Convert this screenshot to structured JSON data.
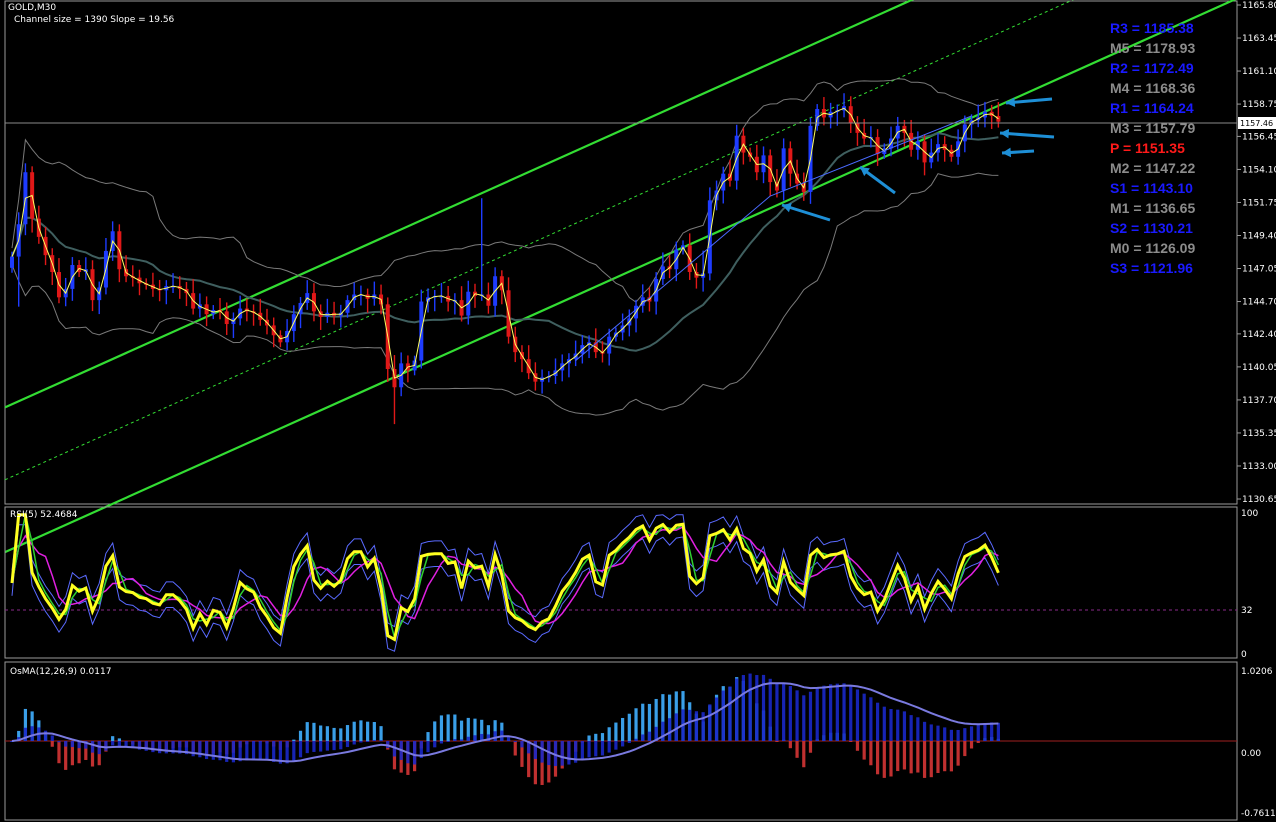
{
  "header": {
    "symbol": "GOLD,M30",
    "channel_info": "Channel size = 1390 Slope = 19.56"
  },
  "price_axis": {
    "ticks": [
      "1165.80",
      "1163.45",
      "1161.10",
      "1158.75",
      "1156.45",
      "1154.10",
      "1151.75",
      "1149.40",
      "1147.05",
      "1144.70",
      "1142.40",
      "1140.05",
      "1137.70",
      "1135.35",
      "1133.00",
      "1130.65"
    ],
    "current": "1157.46"
  },
  "pivots": [
    {
      "label": "R3 = 1185.38",
      "color": "#1a1aff"
    },
    {
      "label": "M5 = 1178.93",
      "color": "#8c8c8c"
    },
    {
      "label": "R2 = 1172.49",
      "color": "#1a1aff"
    },
    {
      "label": "M4 = 1168.36",
      "color": "#8c8c8c"
    },
    {
      "label": "R1 = 1164.24",
      "color": "#1a1aff"
    },
    {
      "label": "M3 = 1157.79",
      "color": "#8c8c8c"
    },
    {
      "label": "P   = 1151.35",
      "color": "#ff1a1a"
    },
    {
      "label": "M2 = 1147.22",
      "color": "#8c8c8c"
    },
    {
      "label": "S1 = 1143.10",
      "color": "#1a1aff"
    },
    {
      "label": "M1 = 1136.65",
      "color": "#8c8c8c"
    },
    {
      "label": "S2 = 1130.21",
      "color": "#1a1aff"
    },
    {
      "label": "M0 = 1126.09",
      "color": "#8c8c8c"
    },
    {
      "label": "S3 = 1121.96",
      "color": "#1a1aff"
    }
  ],
  "rsi_panel": {
    "title": "RSI(5) 52.4684",
    "ticks": [
      "100",
      "32",
      "0"
    ]
  },
  "osma_panel": {
    "title": "OsMA(12,26,9) 0.0117",
    "ticks": [
      "1.0206",
      "0.00",
      "-0.7611"
    ]
  },
  "colors": {
    "bull": "#1e3cff",
    "bear": "#e01818",
    "channel": "#33dd33",
    "bands": "#7a7a7a",
    "ma": "#3f5f5f",
    "rsi_main": "#ffff20",
    "rsi_ma1": "#2fd02f",
    "rsi_ma2": "#e020e0",
    "rsi_band": "#5a6aff",
    "osma_pos": "#3a9fe8",
    "osma_neg": "#c03030",
    "osma_line": "#7a7adf",
    "arrow": "#1e8fd6"
  },
  "chart_data": [
    {
      "type": "candlestick",
      "title": "GOLD,M30",
      "ylim": [
        1130.65,
        1165.8
      ],
      "close": [
        1147.9,
        1150.2,
        1153.9,
        1150.6,
        1149.3,
        1148.0,
        1146.8,
        1145.0,
        1145.6,
        1147.3,
        1146.8,
        1147.0,
        1144.8,
        1145.7,
        1148.3,
        1149.7,
        1147.0,
        1146.5,
        1146.4,
        1146.0,
        1145.9,
        1145.6,
        1145.5,
        1145.8,
        1145.8,
        1145.6,
        1145.3,
        1144.2,
        1144.5,
        1143.8,
        1144.1,
        1144.0,
        1143.1,
        1143.5,
        1144.2,
        1144.0,
        1143.9,
        1143.4,
        1143.0,
        1142.3,
        1141.8,
        1142.6,
        1143.8,
        1144.6,
        1145.3,
        1144.0,
        1143.6,
        1143.9,
        1143.7,
        1143.9,
        1144.8,
        1145.2,
        1145.2,
        1144.9,
        1145.2,
        1144.5,
        1139.9,
        1138.6,
        1140.3,
        1139.8,
        1140.5,
        1144.7,
        1145.0,
        1145.1,
        1145.1,
        1144.7,
        1144.8,
        1143.7,
        1145.4,
        1145.1,
        1145.2,
        1144.4,
        1146.5,
        1145.5,
        1142.2,
        1141.1,
        1140.6,
        1139.6,
        1139.0,
        1139.3,
        1139.4,
        1139.8,
        1140.3,
        1140.6,
        1141.0,
        1141.6,
        1141.8,
        1141.1,
        1141.0,
        1142.2,
        1142.5,
        1143.0,
        1143.5,
        1144.4,
        1145.0,
        1144.7,
        1146.3,
        1147.2,
        1147.0,
        1148.4,
        1148.7,
        1146.8,
        1146.4,
        1146.7,
        1151.9,
        1152.6,
        1153.8,
        1153.3,
        1156.5,
        1155.3,
        1155.0,
        1153.9,
        1155.1,
        1153.2,
        1152.6,
        1155.6,
        1153.8,
        1153.1,
        1152.5,
        1157.2,
        1158.4,
        1157.8,
        1158.2,
        1158.3,
        1158.6,
        1157.4,
        1156.7,
        1156.3,
        1156.4,
        1155.2,
        1155.6,
        1156.3,
        1157.2,
        1156.7,
        1155.5,
        1156.1,
        1154.6,
        1155.3,
        1155.9,
        1155.5,
        1155.0,
        1156.1,
        1157.3,
        1157.6,
        1157.8,
        1158.2,
        1157.9,
        1157.5
      ],
      "rsi_ylim": [
        0,
        100
      ],
      "osma_ylim": [
        -0.7611,
        1.0206
      ]
    }
  ]
}
